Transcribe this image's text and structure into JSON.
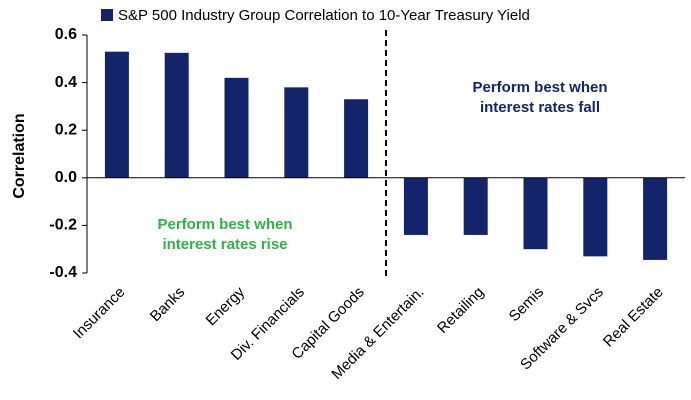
{
  "chart_data": {
    "type": "bar",
    "y_label": "Correlation",
    "categories": [
      "Insurance",
      "Banks",
      "Energy",
      "Div. Financials",
      "Capital Goods",
      "Media & Entertain.",
      "Retailing",
      "Semis",
      "Software & Svcs",
      "Real Estate"
    ],
    "series": [
      {
        "name": "S&P 500 Industry Group Correlation to 10-Year Treasury Yield",
        "color": "#14246b",
        "values": [
          0.53,
          0.525,
          0.42,
          0.38,
          0.33,
          -0.24,
          -0.24,
          -0.3,
          -0.33,
          -0.345
        ]
      }
    ],
    "ylim": [
      -0.4,
      0.6
    ],
    "yticks": [
      0.6,
      0.4,
      0.2,
      {
        "value": 0,
        "label": "0.0"
      },
      -0.2,
      -0.4
    ],
    "grid": false,
    "annotations": [
      {
        "lines": [
          "Perform best when",
          "interest rates rise"
        ],
        "color": "#2db34a"
      },
      {
        "lines": [
          "Perform best when",
          "interest rates fall"
        ],
        "color": "#14246b"
      }
    ]
  }
}
